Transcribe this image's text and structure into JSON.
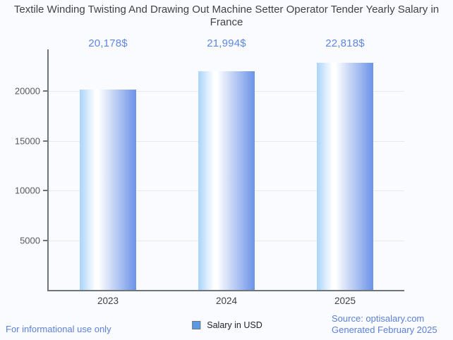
{
  "title": "Textile Winding Twisting And Drawing Out Machine Setter Operator Tender Yearly Salary in France",
  "chart_data": {
    "type": "bar",
    "categories": [
      "2023",
      "2024",
      "2025"
    ],
    "values": [
      20178,
      21994,
      22818
    ],
    "value_labels": [
      "20,178$",
      "21,994$",
      "22,818$"
    ],
    "series": [
      {
        "name": "Salary in USD",
        "values": [
          20178,
          21994,
          22818
        ]
      }
    ],
    "title": "Textile Winding Twisting And Drawing Out Machine Setter Operator Tender Yearly Salary in France",
    "xlabel": "",
    "ylabel": "",
    "ylim": [
      0,
      24200
    ],
    "y_ticks": [
      5000,
      10000,
      15000,
      20000
    ],
    "grid": true,
    "legend_position": "bottom"
  },
  "legend": {
    "label": "Salary in USD"
  },
  "footer": {
    "disclaimer": "For informational use only",
    "source": "Source: optisalary.com",
    "generated": "Generated February 2025"
  },
  "colors": {
    "background": "#fafbfe",
    "title_text": "#3f4246",
    "axis": "#70757a",
    "gridline": "#e6e8ec",
    "y_tick_label": "#57595c",
    "x_tick_label": "#3f4246",
    "data_label": "#5e87e1",
    "footer_text": "#5c81da",
    "bar_gradient_left": "#aad3fc",
    "bar_gradient_mid": "#ffffff",
    "bar_gradient_right": "#6b93e8",
    "legend_swatch_fill": "#5a9ae4",
    "legend_swatch_border": "#6f7479"
  }
}
